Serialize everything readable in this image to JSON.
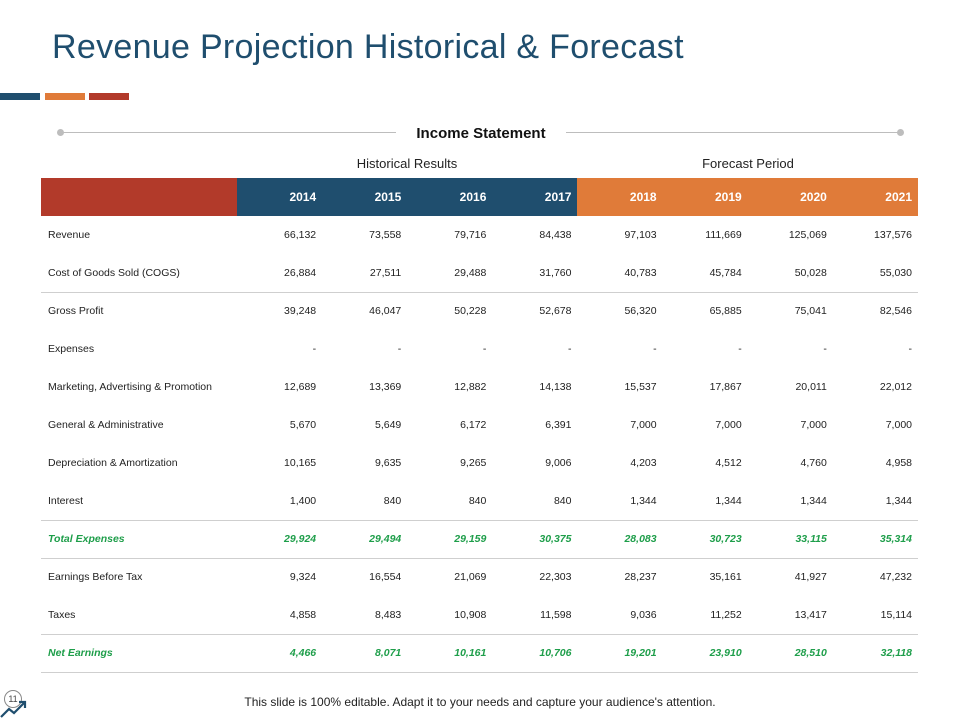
{
  "slide": {
    "title": "Revenue Projection Historical & Forecast",
    "page_number": "11",
    "footer": "This slide is 100% editable. Adapt it to your needs and capture your audience's attention.",
    "colors": {
      "title": "#1f4e6e",
      "historical": "#1f4e6e",
      "forecast": "#e07b39",
      "corner": "#b23a2a",
      "totals": "#1e9e4a"
    }
  },
  "statement": {
    "title": "Income Statement",
    "historical_label": "Historical Results",
    "forecast_label": "Forecast Period",
    "years": [
      {
        "label": "2014",
        "group": "hist"
      },
      {
        "label": "2015",
        "group": "hist"
      },
      {
        "label": "2016",
        "group": "hist"
      },
      {
        "label": "2017",
        "group": "hist"
      },
      {
        "label": "2018",
        "group": "fore"
      },
      {
        "label": "2019",
        "group": "fore"
      },
      {
        "label": "2020",
        "group": "fore"
      },
      {
        "label": "2021",
        "group": "fore"
      }
    ],
    "rows": [
      {
        "label": "Revenue",
        "values": [
          "66,132",
          "73,558",
          "79,716",
          "84,438",
          "97,103",
          "111,669",
          "125,069",
          "137,576"
        ],
        "style": "normal",
        "separator": false
      },
      {
        "label": "Cost of Goods Sold (COGS)",
        "values": [
          "26,884",
          "27,511",
          "29,488",
          "31,760",
          "40,783",
          "45,784",
          "50,028",
          "55,030"
        ],
        "style": "normal",
        "separator": true
      },
      {
        "label": "Gross Profit",
        "values": [
          "39,248",
          "46,047",
          "50,228",
          "52,678",
          "56,320",
          "65,885",
          "75,041",
          "82,546"
        ],
        "style": "normal",
        "separator": false
      },
      {
        "label": "Expenses",
        "values": [
          "-",
          "-",
          "-",
          "-",
          "-",
          "-",
          "-",
          "-"
        ],
        "style": "normal",
        "separator": false
      },
      {
        "label": "Marketing, Advertising & Promotion",
        "values": [
          "12,689",
          "13,369",
          "12,882",
          "14,138",
          "15,537",
          "17,867",
          "20,011",
          "22,012"
        ],
        "style": "normal",
        "separator": false
      },
      {
        "label": "General & Administrative",
        "values": [
          "5,670",
          "5,649",
          "6,172",
          "6,391",
          "7,000",
          "7,000",
          "7,000",
          "7,000"
        ],
        "style": "normal",
        "separator": false
      },
      {
        "label": "Depreciation & Amortization",
        "values": [
          "10,165",
          "9,635",
          "9,265",
          "9,006",
          "4,203",
          "4,512",
          "4,760",
          "4,958"
        ],
        "style": "normal",
        "separator": false
      },
      {
        "label": "Interest",
        "values": [
          "1,400",
          "840",
          "840",
          "840",
          "1,344",
          "1,344",
          "1,344",
          "1,344"
        ],
        "style": "normal",
        "separator": true
      },
      {
        "label": "Total Expenses",
        "values": [
          "29,924",
          "29,494",
          "29,159",
          "30,375",
          "28,083",
          "30,723",
          "33,115",
          "35,314"
        ],
        "style": "total",
        "separator": true
      },
      {
        "label": "Earnings Before Tax",
        "values": [
          "9,324",
          "16,554",
          "21,069",
          "22,303",
          "28,237",
          "35,161",
          "41,927",
          "47,232"
        ],
        "style": "normal",
        "separator": false
      },
      {
        "label": "Taxes",
        "values": [
          "4,858",
          "8,483",
          "10,908",
          "11,598",
          "9,036",
          "11,252",
          "13,417",
          "15,114"
        ],
        "style": "normal",
        "separator": true
      },
      {
        "label": "Net Earnings",
        "values": [
          "4,466",
          "8,071",
          "10,161",
          "10,706",
          "19,201",
          "23,910",
          "28,510",
          "32,118"
        ],
        "style": "total",
        "separator": true
      }
    ]
  },
  "icons": {
    "trend": "trend-up-icon",
    "dots": "divider-dot-icon"
  }
}
